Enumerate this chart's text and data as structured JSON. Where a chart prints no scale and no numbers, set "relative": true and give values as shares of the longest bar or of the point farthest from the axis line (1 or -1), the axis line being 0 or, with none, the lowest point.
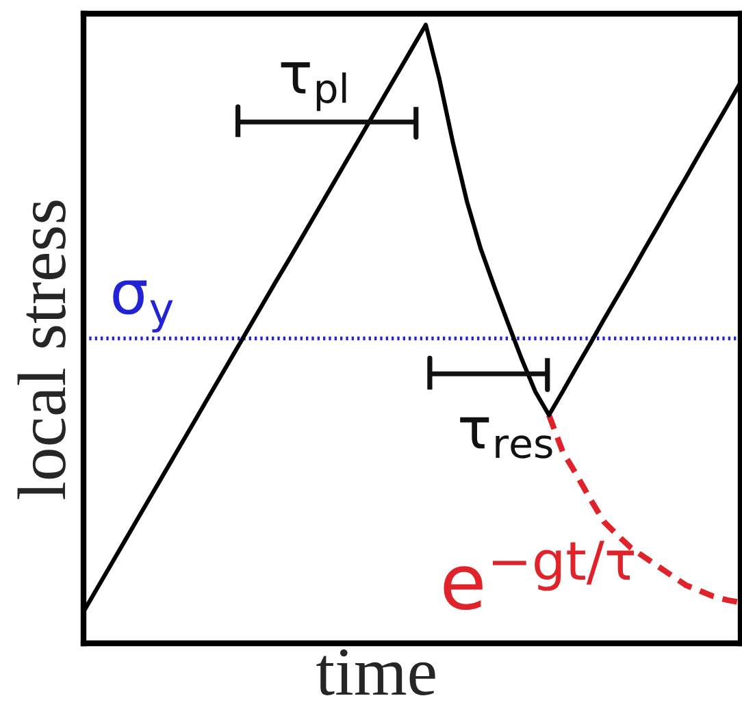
{
  "chart_data": {
    "type": "line",
    "relative": true,
    "xlabel": "time",
    "ylabel": "local stress",
    "categories": [
      null,
      null,
      null,
      null,
      null,
      null,
      null,
      null,
      null,
      null,
      null,
      null,
      null,
      null,
      null,
      null,
      null,
      null,
      null,
      null,
      null,
      null,
      null,
      null,
      null,
      null,
      null,
      null,
      null,
      null,
      null,
      null,
      null,
      null,
      null,
      null,
      null,
      null,
      null,
      null,
      null,
      null,
      null,
      null,
      null,
      null,
      null,
      null,
      null
    ],
    "series": [
      {
        "color": "#000000",
        "line_style": "solid",
        "values": [
          0.051,
          0.089,
          0.127,
          0.165,
          0.203,
          0.241,
          0.279,
          0.317,
          0.355,
          0.393,
          0.431,
          0.469,
          0.507,
          0.545,
          0.583,
          0.62,
          0.658,
          0.696,
          0.734,
          0.772,
          0.81,
          0.848,
          0.886,
          0.924,
          0.962,
          1.0,
          0.912,
          0.808,
          0.715,
          0.639,
          0.577,
          0.518,
          0.46,
          0.407,
          0.369,
          0.407,
          0.446,
          0.484,
          0.523,
          0.561,
          0.599,
          0.638,
          0.676,
          0.715,
          0.753,
          0.792,
          0.83,
          0.868,
          0.907
        ]
      },
      {
        "name": "e$^{−gt/τ}$",
        "color": "#e0222a",
        "line_style": "dashed",
        "values": [
          null,
          null,
          null,
          null,
          null,
          null,
          null,
          null,
          null,
          null,
          null,
          null,
          null,
          null,
          null,
          null,
          null,
          null,
          null,
          null,
          null,
          null,
          null,
          null,
          null,
          null,
          null,
          null,
          null,
          null,
          null,
          null,
          null,
          null,
          0.369,
          0.31,
          0.273,
          0.234,
          0.197,
          0.175,
          0.154,
          0.139,
          0.124,
          0.109,
          0.094,
          0.085,
          0.076,
          0.07,
          0.066
        ]
      }
    ],
    "ref_lines": [
      {
        "axis": "y",
        "value": 0.493,
        "label": "σ$_{y}$",
        "color": "#2222d6",
        "line_style": "dotted"
      }
    ],
    "annotations": [
      "τ$_{pl}$",
      "τ$_{res}$"
    ]
  }
}
